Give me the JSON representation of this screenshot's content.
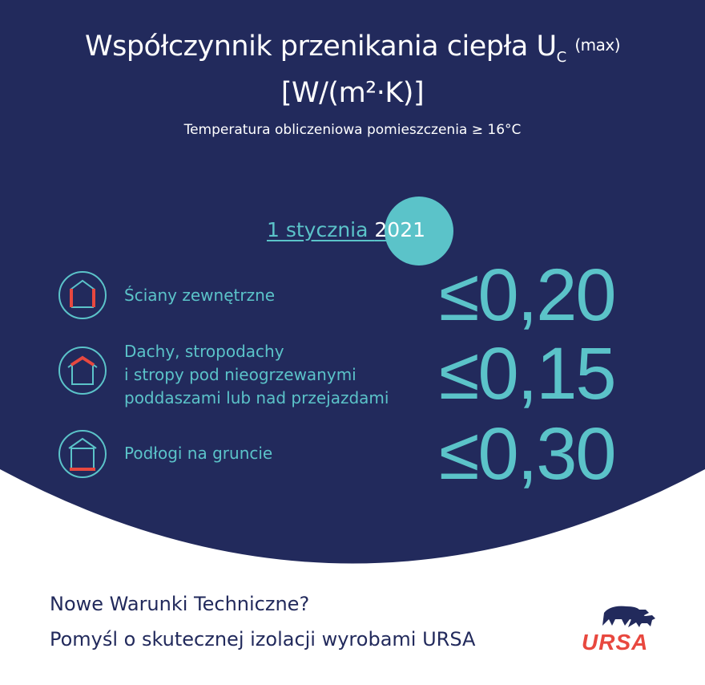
{
  "header": {
    "title_line1": "Współczynnik przenikania ciepła U",
    "title_subscript": "C",
    "title_suffix": "(max)",
    "title_line2": "[W/(m²·K)]",
    "subtitle": "Temperatura obliczeniowa pomieszczenia ≥ 16°C"
  },
  "date": {
    "prefix": "1 stycznia ",
    "year": "2021"
  },
  "rows": [
    {
      "label": "Ściany zewnętrzne",
      "value": "≤0,20",
      "icon": "house-walls-icon"
    },
    {
      "label_lines": [
        "Dachy, stropodachy",
        "i stropy pod nieogrzewanymi",
        "poddaszami lub nad przejazdami"
      ],
      "value": "≤0,15",
      "icon": "house-roof-icon"
    },
    {
      "label": "Podłogi na gruncie",
      "value": "≤0,30",
      "icon": "house-floor-icon"
    }
  ],
  "footer": {
    "line1": "Nowe Warunki Techniczne?",
    "line2": "Pomyśl o skutecznej izolacji wyrobami URSA",
    "logo_text": "URSA"
  },
  "colors": {
    "navy": "#222a5c",
    "teal": "#5bc3c9",
    "red": "#e8483f"
  }
}
